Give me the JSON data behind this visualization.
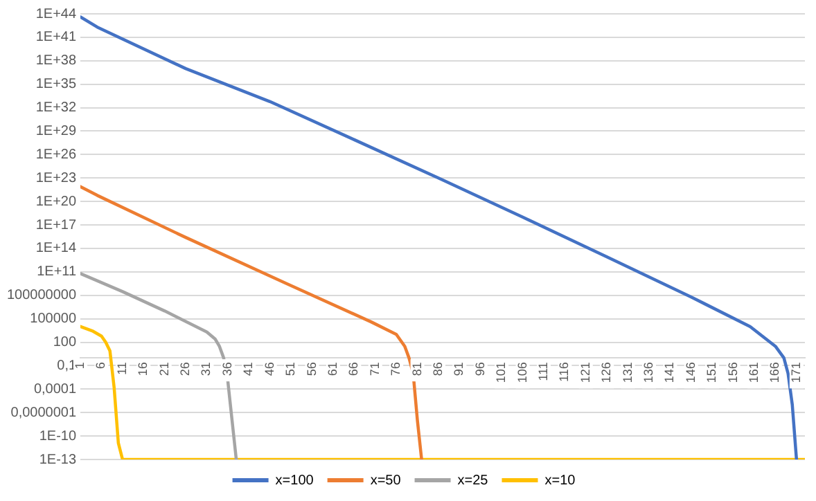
{
  "chart_data": {
    "type": "line",
    "log": "y",
    "grid": "y",
    "legend": "bottom",
    "marker": "none",
    "line_style": "solid",
    "xlim": [
      1,
      173
    ],
    "xticks": [
      1,
      6,
      11,
      16,
      21,
      26,
      31,
      36,
      41,
      46,
      51,
      56,
      61,
      66,
      71,
      76,
      81,
      86,
      91,
      96,
      101,
      106,
      111,
      116,
      121,
      126,
      131,
      136,
      141,
      146,
      151,
      156,
      161,
      166,
      171
    ],
    "ylim": [
      1e-13,
      1e+44
    ],
    "yticks": [
      {
        "value": 1e-13,
        "label": "1E-13"
      },
      {
        "value": 1e-10,
        "label": "1E-10"
      },
      {
        "value": 1e-07,
        "label": "0,0000001"
      },
      {
        "value": 0.0001,
        "label": "0,0001"
      },
      {
        "value": 0.1,
        "label": "0,1"
      },
      {
        "value": 100,
        "label": "100"
      },
      {
        "value": 100000.0,
        "label": "100000"
      },
      {
        "value": 100000000.0,
        "label": "100000000"
      },
      {
        "value": 100000000000.0,
        "label": "1E+11"
      },
      {
        "value": 100000000000000.0,
        "label": "1E+14"
      },
      {
        "value": 1e+17,
        "label": "1E+17"
      },
      {
        "value": 1e+20,
        "label": "1E+20"
      },
      {
        "value": 1e+23,
        "label": "1E+23"
      },
      {
        "value": 1e+26,
        "label": "1E+26"
      },
      {
        "value": 1e+29,
        "label": "1E+29"
      },
      {
        "value": 1e+32,
        "label": "1E+32"
      },
      {
        "value": 1e+35,
        "label": "1E+35"
      },
      {
        "value": 1e+38,
        "label": "1E+38"
      },
      {
        "value": 1e+41,
        "label": "1E+41"
      },
      {
        "value": 1e+44,
        "label": "1E+44"
      }
    ],
    "series": [
      {
        "name": "x=100",
        "color": "#4472c4",
        "x": [
          1,
          5,
          26,
          46,
          66,
          86,
          106,
          126,
          146,
          160,
          166,
          168,
          169,
          170,
          171
        ],
        "values": [
          4e+43,
          2e+42,
          1e+37,
          6e+32,
          8e+27,
          1e+23,
          1e+18,
          8000000000000.0,
          60000000.0,
          10000.0,
          30,
          1,
          0.01,
          1e-06,
          1e-13
        ]
      },
      {
        "name": "x=50",
        "color": "#ed7d31",
        "x": [
          1,
          5,
          26,
          50,
          70,
          76,
          78,
          79,
          80,
          81,
          82
        ],
        "values": [
          8e+21,
          6e+20,
          2500000000000000.0,
          3000000000.0,
          40000.0,
          1000.0,
          30,
          1,
          0.01,
          1e-08,
          1e-13
        ]
      },
      {
        "name": "x=25",
        "color": "#a5a5a5",
        "x": [
          1,
          11,
          21,
          31,
          33,
          34,
          35,
          36,
          38
        ],
        "values": [
          60000000000.0,
          300000000.0,
          1000000.0,
          2000.0,
          250,
          30,
          1,
          0.001,
          1e-13
        ]
      },
      {
        "name": "x=10",
        "color": "#ffc000",
        "x": [
          1,
          4,
          6,
          7,
          8,
          9,
          10,
          11,
          173
        ],
        "values": [
          10000.0,
          2500.0,
          600,
          100,
          8,
          0.00016,
          1.3e-11,
          1e-13,
          1e-13
        ]
      }
    ]
  }
}
